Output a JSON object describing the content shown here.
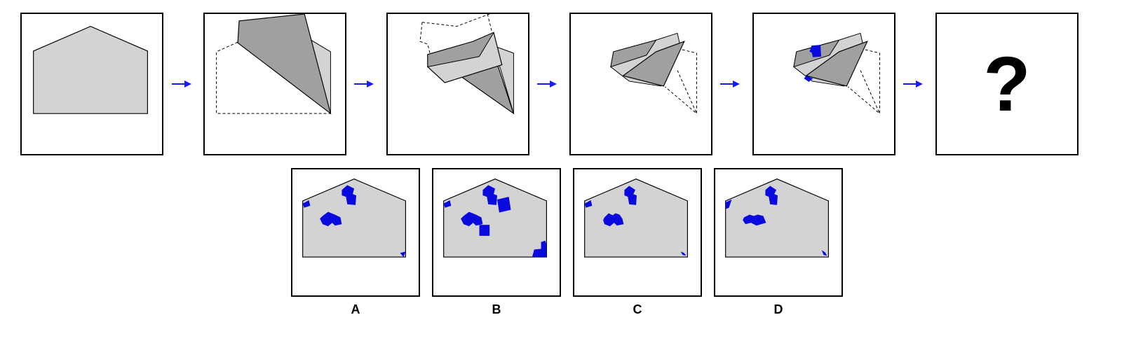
{
  "colors": {
    "paper": "#d3d3d3",
    "fold": "#a0a0a0",
    "hole": "#0a0adf",
    "arrow": "#1a1aff",
    "border": "#000000"
  },
  "sequence": {
    "question_mark": "?"
  },
  "options": [
    {
      "label": "A"
    },
    {
      "label": "B"
    },
    {
      "label": "C"
    },
    {
      "label": "D"
    }
  ]
}
